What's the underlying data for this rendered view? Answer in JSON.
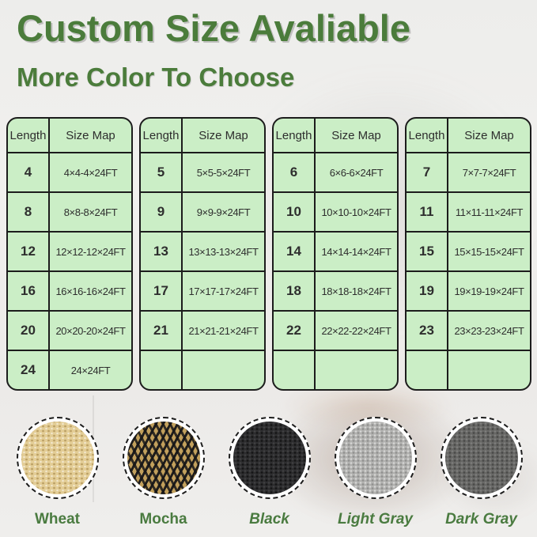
{
  "header": {
    "title": "Custom Size Avaliable",
    "subtitle": "More Color To Choose"
  },
  "tables": [
    {
      "columns": [
        "Length",
        "Size Map"
      ],
      "rows": [
        {
          "length": "4",
          "size": "4×4-4×24FT"
        },
        {
          "length": "8",
          "size": "8×8-8×24FT"
        },
        {
          "length": "12",
          "size": "12×12-12×24FT"
        },
        {
          "length": "16",
          "size": "16×16-16×24FT"
        },
        {
          "length": "20",
          "size": "20×20-20×24FT"
        },
        {
          "length": "24",
          "size": "24×24FT"
        }
      ]
    },
    {
      "columns": [
        "Length",
        "Size Map"
      ],
      "rows": [
        {
          "length": "5",
          "size": "5×5-5×24FT"
        },
        {
          "length": "9",
          "size": "9×9-9×24FT"
        },
        {
          "length": "13",
          "size": "13×13-13×24FT"
        },
        {
          "length": "17",
          "size": "17×17-17×24FT"
        },
        {
          "length": "21",
          "size": "21×21-21×24FT"
        },
        {
          "length": "",
          "size": ""
        }
      ]
    },
    {
      "columns": [
        "Length",
        "Size Map"
      ],
      "rows": [
        {
          "length": "6",
          "size": "6×6-6×24FT"
        },
        {
          "length": "10",
          "size": "10×10-10×24FT"
        },
        {
          "length": "14",
          "size": "14×14-14×24FT"
        },
        {
          "length": "18",
          "size": "18×18-18×24FT"
        },
        {
          "length": "22",
          "size": "22×22-22×24FT"
        },
        {
          "length": "",
          "size": ""
        }
      ]
    },
    {
      "columns": [
        "Length",
        "Size Map"
      ],
      "rows": [
        {
          "length": "7",
          "size": "7×7-7×24FT"
        },
        {
          "length": "11",
          "size": "11×11-11×24FT"
        },
        {
          "length": "15",
          "size": "15×15-15×24FT"
        },
        {
          "length": "19",
          "size": "19×19-19×24FT"
        },
        {
          "length": "23",
          "size": "23×23-23×24FT"
        },
        {
          "length": "",
          "size": ""
        }
      ]
    }
  ],
  "swatches": [
    {
      "name": "Wheat",
      "color": "#e3cd96"
    },
    {
      "name": "Mocha",
      "color": "#8a6a3a"
    },
    {
      "name": "Black",
      "color": "#2d2d2f"
    },
    {
      "name": "Light Gray",
      "color": "#b2b2b0"
    },
    {
      "name": "Dark Gray",
      "color": "#686866"
    }
  ],
  "colors": {
    "accent_green": "#4b7c3b",
    "table_background": "#cbeec6",
    "table_border": "#1c1c1c"
  }
}
